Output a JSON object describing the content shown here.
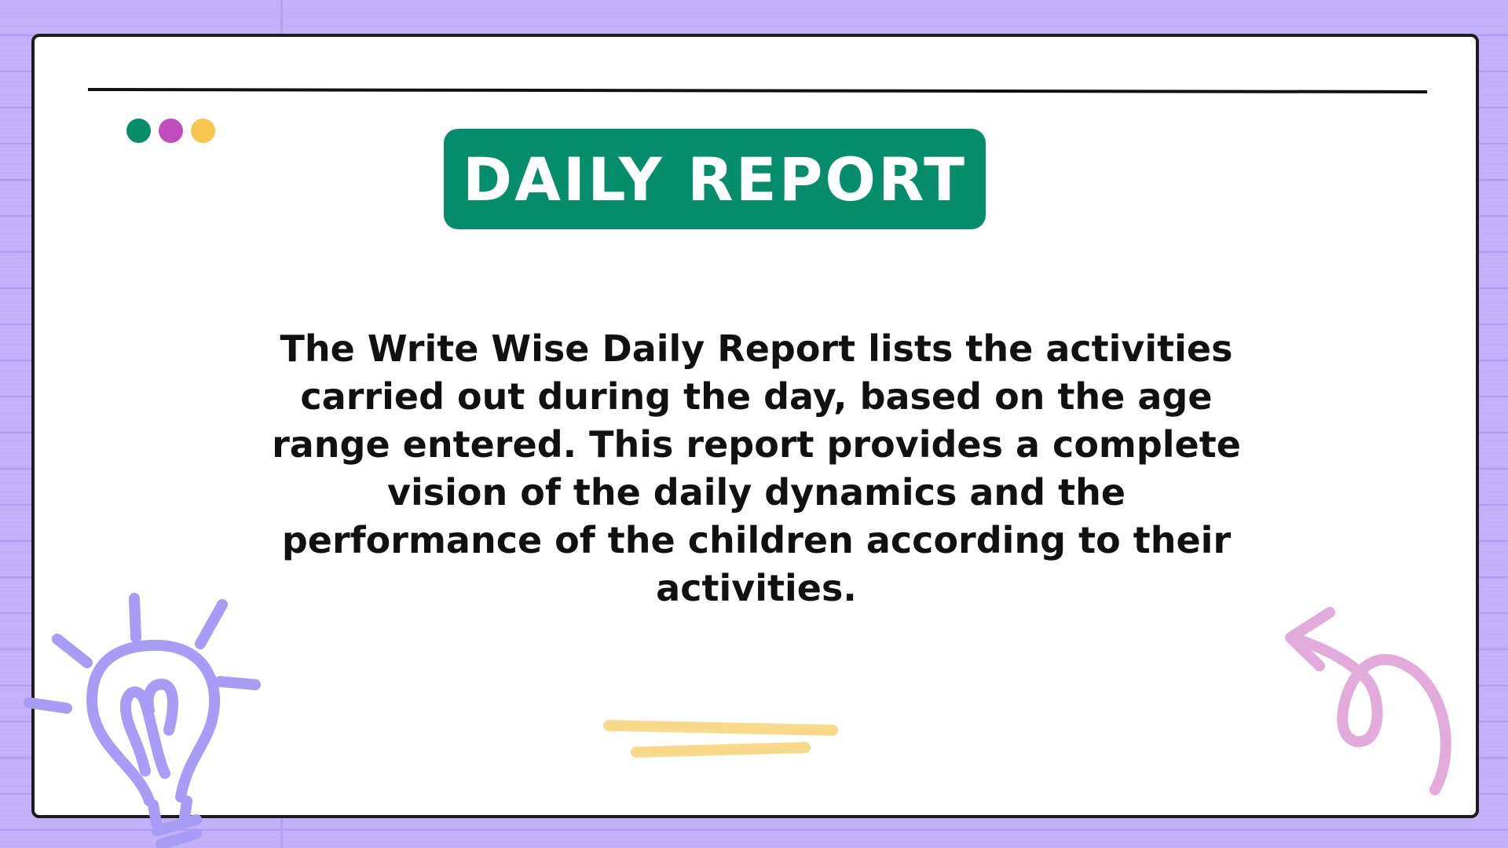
{
  "slide": {
    "title": "DAILY REPORT",
    "body": "The Write Wise Daily Report lists the activities carried out during the day, based on the age range entered. This report provides a complete vision of the daily dynamics and the performance of the children according to their activities."
  },
  "icons": {
    "window_dots": [
      "green-dot-icon",
      "purple-dot-icon",
      "yellow-dot-icon"
    ],
    "decorations": [
      "lightbulb-icon",
      "curly-arrow-icon",
      "underline-strokes-icon"
    ]
  },
  "colors": {
    "background": "#c3b1f9",
    "title_bg": "#068d6c",
    "title_text": "#ffffff",
    "dot_green": "#068d6c",
    "dot_purple": "#c04fbd",
    "dot_yellow": "#f8c64f",
    "lightbulb": "#a89cf6",
    "arrow": "#e3abdc",
    "underline": "#f8da8a"
  }
}
